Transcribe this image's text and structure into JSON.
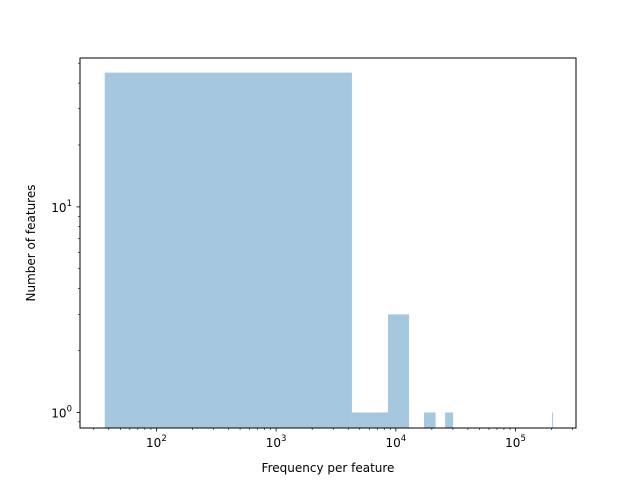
{
  "chart_data": {
    "type": "bar",
    "xlabel": "Frequency per feature",
    "ylabel": "Number of features",
    "xscale": "log",
    "yscale": "log",
    "xlim": [
      23,
      320000
    ],
    "ylim": [
      0.84,
      53
    ],
    "x_ticks": [
      {
        "value": 100,
        "base": "10",
        "exp": "2"
      },
      {
        "value": 1000,
        "base": "10",
        "exp": "3"
      },
      {
        "value": 10000,
        "base": "10",
        "exp": "4"
      },
      {
        "value": 100000,
        "base": "10",
        "exp": "5"
      }
    ],
    "y_ticks": [
      {
        "value": 1,
        "base": "10",
        "exp": "0"
      },
      {
        "value": 10,
        "base": "10",
        "exp": "1"
      }
    ],
    "grid": false,
    "bar_color": "#a6c8df",
    "bars": [
      {
        "x0": 37,
        "x1": 4300,
        "count": 45
      },
      {
        "x0": 4300,
        "x1": 8600,
        "count": 1
      },
      {
        "x0": 8600,
        "x1": 12900,
        "count": 3
      },
      {
        "x0": 17200,
        "x1": 21500,
        "count": 1
      },
      {
        "x0": 25800,
        "x1": 30100,
        "count": 1
      },
      {
        "x0": 202000,
        "x1": 206000,
        "count": 1
      }
    ]
  }
}
